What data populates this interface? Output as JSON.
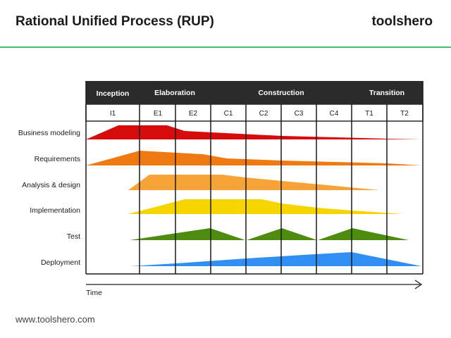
{
  "header": {
    "title": "Rational Unified Process (RUP)",
    "brand": "toolshero"
  },
  "footer": {
    "url": "www.toolshero.com"
  },
  "diagram": {
    "phases": [
      "Inception",
      "Elaboration",
      "Construction",
      "Transition"
    ],
    "iterations": [
      "I1",
      "E1",
      "E2",
      "C1",
      "C2",
      "C3",
      "C4",
      "T1",
      "T2"
    ],
    "disciplines": [
      {
        "name": "Business modeling",
        "color": "#d60b0b"
      },
      {
        "name": "Requirements",
        "color": "#f07a12"
      },
      {
        "name": "Analysis & design",
        "color": "#f8a337"
      },
      {
        "name": "Implementation",
        "color": "#f5d400"
      },
      {
        "name": "Test",
        "color": "#4e8c0f"
      },
      {
        "name": "Deployment",
        "color": "#2f8ff2"
      }
    ],
    "time_label": "Time"
  }
}
